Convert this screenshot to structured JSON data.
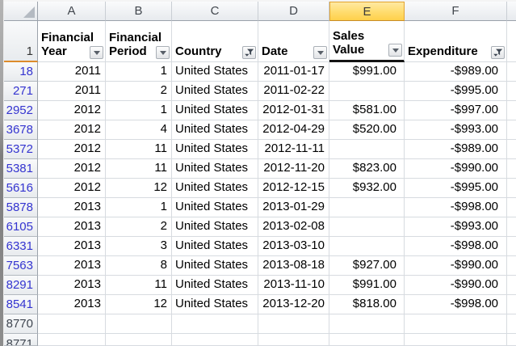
{
  "window": {
    "type": "spreadsheet-grid"
  },
  "colors": {
    "selected_column_header_top": "#ffe9a2",
    "selected_column_header_bottom": "#ffd04b",
    "selected_header_border": "#e3a42f",
    "active_row_indicator": "#dd8b2b",
    "filtered_row_number_text": "#3434d0",
    "active_cell_border": "#141414",
    "gridline": "#d7dbe0"
  },
  "corner": {
    "icon": "select-all-triangle"
  },
  "header_row_number": "1",
  "columns": [
    {
      "letter": "A",
      "label": "Financial Year",
      "filter_icon": "dropdown-arrow",
      "align": "right",
      "key": "year",
      "selected": false,
      "active_cell": false
    },
    {
      "letter": "B",
      "label": "Financial Period",
      "filter_icon": "dropdown-arrow",
      "align": "right",
      "key": "period",
      "selected": false,
      "active_cell": false
    },
    {
      "letter": "C",
      "label": "Country",
      "filter_icon": "funnel",
      "align": "left",
      "key": "country",
      "selected": false,
      "active_cell": false
    },
    {
      "letter": "D",
      "label": "Date",
      "filter_icon": "dropdown-arrow",
      "align": "right",
      "key": "date",
      "selected": false,
      "active_cell": false
    },
    {
      "letter": "E",
      "label": "Sales Value",
      "filter_icon": "dropdown-arrow",
      "align": "right",
      "key": "sales",
      "selected": true,
      "active_cell": true
    },
    {
      "letter": "F",
      "label": "Expenditure",
      "filter_icon": "funnel",
      "align": "right",
      "key": "expenditure",
      "selected": false,
      "active_cell": false
    }
  ],
  "rows": [
    {
      "number": "18",
      "filtered": true,
      "partial": false,
      "cells": [
        "2011",
        "1",
        "United States",
        "2011-01-17",
        "$991.00",
        "-$989.00"
      ]
    },
    {
      "number": "271",
      "filtered": true,
      "partial": false,
      "cells": [
        "2011",
        "2",
        "United States",
        "2011-02-22",
        "",
        "-$995.00"
      ]
    },
    {
      "number": "2952",
      "filtered": true,
      "partial": false,
      "cells": [
        "2012",
        "1",
        "United States",
        "2012-01-31",
        "$581.00",
        "-$997.00"
      ]
    },
    {
      "number": "3678",
      "filtered": true,
      "partial": false,
      "cells": [
        "2012",
        "4",
        "United States",
        "2012-04-29",
        "$520.00",
        "-$993.00"
      ]
    },
    {
      "number": "5372",
      "filtered": true,
      "partial": false,
      "cells": [
        "2012",
        "11",
        "United States",
        "2012-11-11",
        "",
        "-$989.00"
      ]
    },
    {
      "number": "5381",
      "filtered": true,
      "partial": false,
      "cells": [
        "2012",
        "11",
        "United States",
        "2012-11-20",
        "$823.00",
        "-$990.00"
      ]
    },
    {
      "number": "5616",
      "filtered": true,
      "partial": false,
      "cells": [
        "2012",
        "12",
        "United States",
        "2012-12-15",
        "$932.00",
        "-$995.00"
      ]
    },
    {
      "number": "5878",
      "filtered": true,
      "partial": false,
      "cells": [
        "2013",
        "1",
        "United States",
        "2013-01-29",
        "",
        "-$998.00"
      ]
    },
    {
      "number": "6105",
      "filtered": true,
      "partial": false,
      "cells": [
        "2013",
        "2",
        "United States",
        "2013-02-08",
        "",
        "-$993.00"
      ]
    },
    {
      "number": "6331",
      "filtered": true,
      "partial": false,
      "cells": [
        "2013",
        "3",
        "United States",
        "2013-03-10",
        "",
        "-$998.00"
      ]
    },
    {
      "number": "7563",
      "filtered": true,
      "partial": false,
      "cells": [
        "2013",
        "8",
        "United States",
        "2013-08-18",
        "$927.00",
        "-$990.00"
      ]
    },
    {
      "number": "8291",
      "filtered": true,
      "partial": false,
      "cells": [
        "2013",
        "11",
        "United States",
        "2013-11-10",
        "$991.00",
        "-$990.00"
      ]
    },
    {
      "number": "8541",
      "filtered": true,
      "partial": false,
      "cells": [
        "2013",
        "12",
        "United States",
        "2013-12-20",
        "$818.00",
        "-$998.00"
      ]
    },
    {
      "number": "8770",
      "filtered": false,
      "partial": false,
      "cells": [
        "",
        "",
        "",
        "",
        "",
        ""
      ]
    },
    {
      "number": "8771",
      "filtered": false,
      "partial": true,
      "cells": [
        "",
        "",
        "",
        "",
        "",
        ""
      ]
    }
  ]
}
